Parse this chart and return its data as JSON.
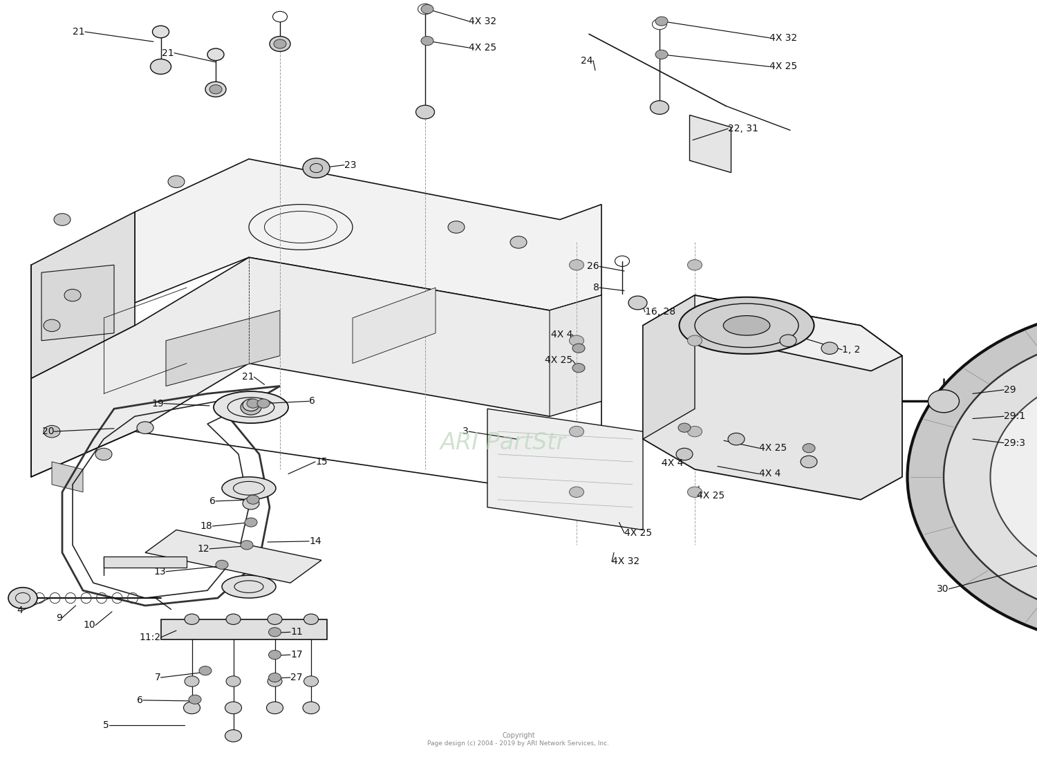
{
  "background_color": "#ffffff",
  "line_color": "#111111",
  "watermark_text": "ARI PartStr",
  "watermark_color": "#b8d4b8",
  "copyright_line1": "Copyright",
  "copyright_line2": "Page design (c) 2004 - 2019 by ARI Network Services, Inc.",
  "copyright_color": "#888888",
  "figsize": [
    15.0,
    10.95
  ],
  "dpi": 100
}
